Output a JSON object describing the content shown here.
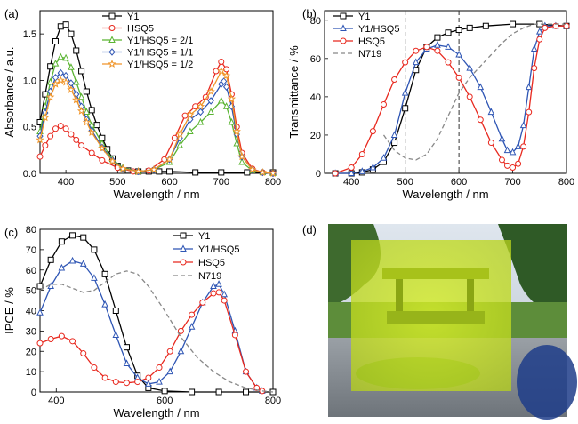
{
  "chart_data": [
    {
      "panel": "(a)",
      "type": "line",
      "xlabel": "Wavelength / nm",
      "ylabel": "Absorbance / a.u.",
      "xlim": [
        350,
        800
      ],
      "ylim": [
        0,
        1.75
      ],
      "xticks": [
        "400",
        "500",
        "600",
        "700",
        "800"
      ],
      "yticks": [
        "0.0",
        "0.5",
        "1.0",
        "1.5"
      ],
      "legend": "top-center",
      "series": [
        {
          "name": "Y1",
          "color": "#000000",
          "marker": "square",
          "x": [
            350,
            360,
            370,
            380,
            390,
            400,
            410,
            420,
            430,
            440,
            450,
            460,
            470,
            480,
            490,
            500,
            520,
            540,
            560,
            580,
            600,
            650,
            700,
            750,
            800
          ],
          "y": [
            0.55,
            0.85,
            1.15,
            1.42,
            1.58,
            1.6,
            1.5,
            1.32,
            1.1,
            0.88,
            0.68,
            0.52,
            0.38,
            0.26,
            0.16,
            0.08,
            0.03,
            0.02,
            0.02,
            0.02,
            0.02,
            0.01,
            0.01,
            0.01,
            0.01
          ]
        },
        {
          "name": "HSQ5",
          "color": "#e8281e",
          "marker": "circle",
          "x": [
            350,
            360,
            370,
            380,
            390,
            400,
            410,
            420,
            430,
            450,
            470,
            500,
            530,
            560,
            590,
            610,
            630,
            650,
            670,
            690,
            700,
            710,
            720,
            730,
            740,
            760,
            780,
            800
          ],
          "y": [
            0.18,
            0.3,
            0.4,
            0.48,
            0.51,
            0.48,
            0.42,
            0.36,
            0.3,
            0.22,
            0.14,
            0.06,
            0.02,
            0.03,
            0.15,
            0.38,
            0.62,
            0.72,
            0.82,
            1.1,
            1.2,
            1.12,
            0.85,
            0.5,
            0.22,
            0.05,
            0.01,
            0.0
          ]
        },
        {
          "name": "Y1/HSQ5 = 2/1",
          "color": "#5ab432",
          "marker": "triangle",
          "x": [
            350,
            360,
            370,
            380,
            390,
            400,
            410,
            420,
            430,
            440,
            450,
            470,
            490,
            510,
            540,
            570,
            600,
            620,
            640,
            660,
            680,
            700,
            710,
            720,
            730,
            740,
            760,
            780,
            800
          ],
          "y": [
            0.45,
            0.72,
            0.98,
            1.18,
            1.25,
            1.24,
            1.14,
            0.98,
            0.82,
            0.66,
            0.52,
            0.32,
            0.15,
            0.06,
            0.02,
            0.04,
            0.12,
            0.3,
            0.45,
            0.55,
            0.66,
            0.78,
            0.72,
            0.55,
            0.32,
            0.12,
            0.03,
            0.01,
            0.0
          ]
        },
        {
          "name": "Y1/HSQ5 = 1/1",
          "color": "#2e55b4",
          "marker": "diamond",
          "x": [
            350,
            360,
            370,
            380,
            390,
            400,
            410,
            420,
            430,
            440,
            450,
            470,
            490,
            510,
            540,
            570,
            600,
            620,
            640,
            660,
            680,
            700,
            705,
            710,
            720,
            730,
            740,
            760,
            780,
            800
          ],
          "y": [
            0.4,
            0.65,
            0.88,
            1.03,
            1.08,
            1.05,
            0.97,
            0.85,
            0.72,
            0.58,
            0.46,
            0.28,
            0.14,
            0.05,
            0.02,
            0.04,
            0.15,
            0.38,
            0.58,
            0.66,
            0.78,
            0.96,
            0.99,
            0.93,
            0.72,
            0.42,
            0.18,
            0.04,
            0.01,
            0.0
          ]
        },
        {
          "name": "Y1/HSQ5 = 1/2",
          "color": "#f0952a",
          "marker": "star",
          "x": [
            350,
            360,
            370,
            380,
            390,
            400,
            410,
            420,
            430,
            440,
            450,
            470,
            490,
            510,
            540,
            570,
            600,
            620,
            640,
            660,
            680,
            700,
            710,
            720,
            730,
            740,
            760,
            780,
            800
          ],
          "y": [
            0.36,
            0.6,
            0.82,
            0.96,
            1.0,
            0.98,
            0.9,
            0.79,
            0.67,
            0.55,
            0.44,
            0.27,
            0.13,
            0.05,
            0.02,
            0.04,
            0.15,
            0.42,
            0.63,
            0.72,
            0.88,
            1.1,
            1.05,
            0.8,
            0.45,
            0.18,
            0.04,
            0.01,
            0.0
          ]
        }
      ]
    },
    {
      "panel": "(b)",
      "type": "line",
      "xlabel": "Wavelength / nm",
      "ylabel": "Transmittance / %",
      "xlim": [
        350,
        800
      ],
      "ylim": [
        0,
        85
      ],
      "xticks": [
        "400",
        "500",
        "600",
        "700",
        "800"
      ],
      "yticks": [
        "0",
        "20",
        "40",
        "60",
        "80"
      ],
      "vlines": [
        500,
        600
      ],
      "legend": "top-left",
      "series": [
        {
          "name": "Y1",
          "color": "#000000",
          "marker": "square",
          "x": [
            370,
            400,
            420,
            440,
            460,
            480,
            500,
            520,
            540,
            560,
            580,
            600,
            620,
            650,
            700,
            750,
            800
          ],
          "y": [
            0,
            0,
            0.5,
            2,
            6,
            16,
            34,
            54,
            66,
            71,
            73.5,
            75,
            76,
            77,
            78,
            78,
            77
          ]
        },
        {
          "name": "Y1/HSQ5",
          "color": "#2e55b4",
          "marker": "triangle",
          "x": [
            370,
            400,
            420,
            440,
            460,
            480,
            500,
            520,
            540,
            560,
            580,
            600,
            620,
            640,
            660,
            680,
            690,
            700,
            710,
            720,
            730,
            740,
            750,
            760,
            780,
            800
          ],
          "y": [
            0,
            0,
            1,
            3,
            8,
            20,
            42,
            58,
            65,
            67,
            66,
            62,
            55,
            45,
            32,
            18,
            12,
            11,
            14,
            25,
            45,
            65,
            74,
            77,
            77,
            77
          ]
        },
        {
          "name": "HSQ5",
          "color": "#e8281e",
          "marker": "circle",
          "x": [
            370,
            400,
            420,
            440,
            460,
            480,
            500,
            520,
            540,
            560,
            580,
            600,
            620,
            640,
            660,
            680,
            690,
            700,
            710,
            720,
            730,
            740,
            750,
            760,
            780,
            800
          ],
          "y": [
            0,
            3,
            10,
            22,
            36,
            49,
            58,
            64,
            66,
            64,
            58,
            50,
            40,
            28,
            16,
            7,
            4,
            3,
            5,
            14,
            32,
            55,
            70,
            76,
            77,
            77
          ]
        },
        {
          "name": "N719",
          "color": "#888888",
          "marker": "dash",
          "x": [
            460,
            480,
            500,
            520,
            540,
            560,
            580,
            600,
            620,
            640,
            660,
            680,
            700,
            720,
            740,
            760,
            780,
            800
          ],
          "y": [
            20,
            12,
            8,
            7,
            10,
            18,
            30,
            42,
            50,
            56,
            62,
            68,
            73,
            76,
            78,
            78,
            78,
            78
          ]
        }
      ]
    },
    {
      "panel": "(c)",
      "type": "line",
      "xlabel": "Wavelength / nm",
      "ylabel": "IPCE / %",
      "xlim": [
        370,
        800
      ],
      "ylim": [
        0,
        80
      ],
      "xticks": [
        "400",
        "600",
        "800"
      ],
      "yticks": [
        "0",
        "10",
        "20",
        "30",
        "40",
        "50",
        "60",
        "70",
        "80"
      ],
      "legend": "top-right",
      "series": [
        {
          "name": "Y1",
          "color": "#000000",
          "marker": "square",
          "x": [
            370,
            390,
            410,
            430,
            450,
            470,
            490,
            510,
            530,
            550,
            570,
            600,
            650,
            700,
            750,
            800
          ],
          "y": [
            52,
            65,
            74,
            77,
            76,
            70,
            58,
            40,
            22,
            8,
            2,
            0.5,
            0,
            0,
            0,
            0
          ]
        },
        {
          "name": "Y1/HSQ5",
          "color": "#2e55b4",
          "marker": "triangle",
          "x": [
            370,
            390,
            410,
            430,
            450,
            470,
            490,
            510,
            530,
            550,
            570,
            590,
            610,
            630,
            650,
            670,
            690,
            700,
            710,
            730,
            750,
            770,
            780
          ],
          "y": [
            39,
            52,
            61,
            64.5,
            63,
            56,
            43,
            28,
            14,
            7,
            4,
            5,
            10,
            20,
            32,
            44,
            52,
            53,
            48,
            30,
            10,
            2,
            0.5
          ]
        },
        {
          "name": "HSQ5",
          "color": "#e8281e",
          "marker": "circle",
          "x": [
            370,
            390,
            410,
            430,
            450,
            470,
            490,
            510,
            530,
            550,
            570,
            590,
            610,
            630,
            650,
            670,
            690,
            700,
            710,
            730,
            750,
            770,
            780
          ],
          "y": [
            24,
            26,
            27.5,
            25,
            19,
            12,
            7,
            5,
            4.5,
            5,
            7,
            12,
            20,
            30,
            38,
            44,
            48.5,
            49,
            45,
            28,
            10,
            2,
            0.5
          ]
        },
        {
          "name": "N719",
          "color": "#888888",
          "marker": "dash",
          "x": [
            370,
            390,
            410,
            430,
            450,
            470,
            490,
            510,
            530,
            550,
            570,
            600,
            630,
            660,
            690,
            720,
            750,
            780,
            800
          ],
          "y": [
            50,
            53,
            53,
            51,
            49,
            50,
            54,
            58,
            59.5,
            58,
            52,
            40,
            27,
            17,
            10,
            5,
            2,
            0.5,
            0
          ]
        }
      ]
    }
  ],
  "panel_d": {
    "label": "(d)"
  }
}
